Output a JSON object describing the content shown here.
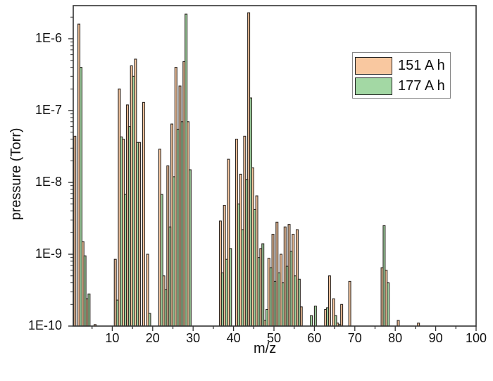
{
  "chart_data": {
    "type": "bar",
    "title": "",
    "xlabel": "m/z",
    "ylabel": "pressure (Torr)",
    "yscale": "log",
    "ylim": [
      1e-10,
      3e-06
    ],
    "xlim": [
      0,
      100
    ],
    "x_ticks": [
      10,
      20,
      30,
      40,
      50,
      60,
      70,
      80,
      90,
      100
    ],
    "y_ticks": [
      "1E-10",
      "1E-9",
      "1E-8",
      "1E-7",
      "1E-6"
    ],
    "grid": false,
    "legend_position": "upper right",
    "series": [
      {
        "name": "151 A h",
        "color": "#f9c8a0",
        "points": [
          [
            1,
            4.4e-08
          ],
          [
            2,
            1.6e-06
          ],
          [
            3,
            1.5e-09
          ],
          [
            4,
            2.4e-10
          ],
          [
            6,
            1.05e-10
          ],
          [
            11,
            8.5e-10
          ],
          [
            12,
            2e-07
          ],
          [
            13,
            4e-08
          ],
          [
            14,
            1.2e-07
          ],
          [
            15,
            4.2e-07
          ],
          [
            16,
            5.2e-07
          ],
          [
            17,
            3.6e-08
          ],
          [
            18,
            1.3e-07
          ],
          [
            19,
            1e-09
          ],
          [
            22,
            2.9e-08
          ],
          [
            23,
            5e-10
          ],
          [
            24,
            1.7e-08
          ],
          [
            25,
            6.5e-08
          ],
          [
            26,
            4e-07
          ],
          [
            27,
            2.2e-07
          ],
          [
            28,
            4.8e-07
          ],
          [
            29,
            7e-08
          ],
          [
            37,
            2.9e-09
          ],
          [
            38,
            4.8e-09
          ],
          [
            39,
            2.1e-08
          ],
          [
            41,
            4e-08
          ],
          [
            42,
            1.3e-08
          ],
          [
            43,
            4.4e-08
          ],
          [
            44,
            2.3e-06
          ],
          [
            45,
            1.6e-08
          ],
          [
            46,
            6.5e-09
          ],
          [
            47,
            1.2e-09
          ],
          [
            48,
            1.2e-10
          ],
          [
            49,
            8.8e-10
          ],
          [
            50,
            1.9e-09
          ],
          [
            51,
            2.8e-09
          ],
          [
            52,
            1e-09
          ],
          [
            53,
            2.4e-09
          ],
          [
            54,
            2.6e-09
          ],
          [
            55,
            1.9e-09
          ],
          [
            56,
            2.2e-09
          ],
          [
            57,
            1.85e-10
          ],
          [
            63,
            1.7e-10
          ],
          [
            64,
            5e-10
          ],
          [
            65,
            2.4e-10
          ],
          [
            66,
            1.1e-10
          ],
          [
            67,
            2e-10
          ],
          [
            69,
            4.2e-10
          ],
          [
            77,
            6.5e-10
          ],
          [
            78,
            6e-10
          ],
          [
            81,
            1.2e-10
          ],
          [
            86,
            1.1e-10
          ]
        ]
      },
      {
        "name": "177 A h",
        "color": "#a3d8a4",
        "points": [
          [
            2,
            4e-07
          ],
          [
            3,
            9.5e-10
          ],
          [
            4,
            2.8e-10
          ],
          [
            11,
            2.3e-10
          ],
          [
            12,
            4.3e-08
          ],
          [
            13,
            6.8e-09
          ],
          [
            14,
            6e-08
          ],
          [
            15,
            3e-07
          ],
          [
            16,
            3.6e-08
          ],
          [
            19,
            1.5e-10
          ],
          [
            22,
            6.8e-09
          ],
          [
            23,
            3.2e-10
          ],
          [
            24,
            2.4e-09
          ],
          [
            25,
            1.2e-08
          ],
          [
            26,
            5.5e-08
          ],
          [
            27,
            7e-08
          ],
          [
            28,
            2.2e-06
          ],
          [
            29,
            1.5e-08
          ],
          [
            37,
            5.5e-10
          ],
          [
            38,
            8.5e-10
          ],
          [
            39,
            1.2e-09
          ],
          [
            41,
            5e-09
          ],
          [
            42,
            2.2e-09
          ],
          [
            43,
            1.1e-08
          ],
          [
            44,
            1.5e-07
          ],
          [
            45,
            4.2e-09
          ],
          [
            46,
            9e-10
          ],
          [
            47,
            1.4e-09
          ],
          [
            48,
            1.7e-10
          ],
          [
            49,
            6.5e-10
          ],
          [
            50,
            4.2e-10
          ],
          [
            51,
            5.5e-10
          ],
          [
            52,
            4e-10
          ],
          [
            53,
            6.8e-10
          ],
          [
            54,
            1.1e-09
          ],
          [
            55,
            5e-10
          ],
          [
            56,
            4.5e-10
          ],
          [
            59,
            1.4e-10
          ],
          [
            60,
            1.9e-10
          ],
          [
            63,
            1.8e-10
          ],
          [
            65,
            1.4e-10
          ],
          [
            66,
            1.05e-10
          ],
          [
            77,
            2.5e-09
          ],
          [
            78,
            4e-10
          ]
        ]
      }
    ]
  },
  "legend": {
    "items": [
      {
        "label": "151 A h",
        "color": "#f9c8a0"
      },
      {
        "label": "177 A h",
        "color": "#a3d8a4"
      }
    ]
  }
}
